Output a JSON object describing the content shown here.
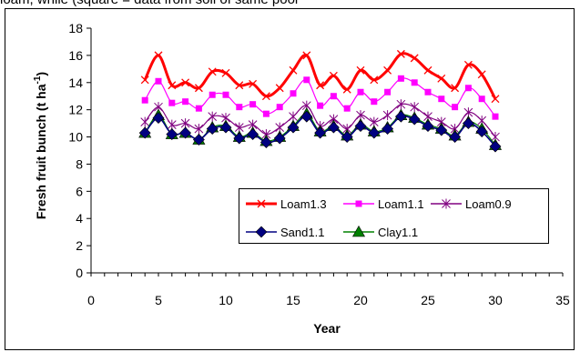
{
  "top_caption": "loam, while (square = data from soil of same pool",
  "chart_data": {
    "type": "line",
    "title": "",
    "xlabel": "Year",
    "ylabel": "Fresh fruit bunch (t ha",
    "ylabel_sup": "-1",
    "ylabel_suffix": ")",
    "xlim": [
      0,
      35
    ],
    "ylim": [
      0,
      18
    ],
    "x_ticks": [
      0,
      5,
      10,
      15,
      20,
      25,
      30,
      35
    ],
    "y_ticks": [
      0,
      2,
      4,
      6,
      8,
      10,
      12,
      14,
      16,
      18
    ],
    "grid": false,
    "legend_position": "lower-right",
    "x": [
      4,
      5,
      6,
      7,
      8,
      9,
      10,
      11,
      12,
      13,
      14,
      15,
      16,
      17,
      18,
      19,
      20,
      21,
      22,
      23,
      24,
      25,
      26,
      27,
      28,
      29,
      30
    ],
    "series": [
      {
        "name": "Loam1.3",
        "color": "#ff0000",
        "marker": "x-icon",
        "values": [
          14.2,
          16.0,
          13.8,
          14.0,
          13.6,
          14.8,
          14.7,
          13.8,
          13.9,
          13.0,
          13.6,
          14.9,
          16.0,
          13.8,
          14.5,
          13.5,
          14.9,
          14.2,
          14.9,
          16.1,
          15.8,
          14.9,
          14.3,
          13.6,
          15.3,
          14.6,
          12.8
        ]
      },
      {
        "name": "Loam1.1",
        "color": "#ff00ff",
        "marker": "square-icon",
        "values": [
          12.7,
          14.1,
          12.5,
          12.6,
          12.1,
          13.1,
          13.1,
          12.2,
          12.4,
          11.7,
          12.2,
          13.2,
          14.2,
          12.3,
          13.0,
          12.1,
          13.3,
          12.6,
          13.3,
          14.3,
          14.0,
          13.3,
          12.8,
          12.2,
          13.6,
          12.8,
          11.5
        ]
      },
      {
        "name": "Loam0.9",
        "color": "#800080",
        "marker": "asterisk-icon",
        "values": [
          11.1,
          12.2,
          10.9,
          11.0,
          10.6,
          11.5,
          11.4,
          10.7,
          10.9,
          10.2,
          10.7,
          11.5,
          12.3,
          10.8,
          11.3,
          10.6,
          11.6,
          11.1,
          11.6,
          12.4,
          12.2,
          11.5,
          11.1,
          10.6,
          11.8,
          11.2,
          10.0
        ]
      },
      {
        "name": "Sand1.1",
        "color": "#000080",
        "marker": "diamond-icon",
        "values": [
          10.3,
          11.4,
          10.2,
          10.3,
          9.8,
          10.6,
          10.7,
          9.9,
          10.2,
          9.6,
          9.9,
          10.7,
          11.5,
          10.3,
          10.7,
          10.0,
          10.8,
          10.3,
          10.6,
          11.5,
          11.3,
          10.8,
          10.5,
          10.0,
          11.0,
          10.4,
          9.3
        ]
      },
      {
        "name": "Clay1.1",
        "color": "#008000",
        "marker": "triangle-icon",
        "values": [
          10.3,
          11.6,
          10.2,
          10.3,
          9.8,
          10.7,
          10.8,
          10.0,
          10.3,
          9.7,
          10.0,
          10.8,
          11.7,
          10.4,
          10.8,
          10.1,
          10.9,
          10.4,
          10.7,
          11.6,
          11.4,
          10.9,
          10.6,
          10.1,
          11.1,
          10.6,
          9.4
        ]
      }
    ],
    "legend_rows": [
      [
        "Loam1.3",
        "Loam1.1",
        "Loam0.9"
      ],
      [
        "Sand1.1",
        "Clay1.1"
      ]
    ]
  }
}
